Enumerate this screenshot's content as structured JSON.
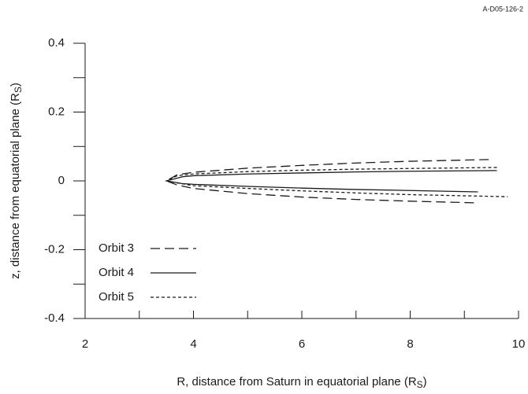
{
  "chart_data": {
    "type": "line",
    "annotation": "A-D05-126-2",
    "x_label": {
      "text": "R, distance from Saturn in equatorial plane (R",
      "subscript": "S",
      "end": ")"
    },
    "y_label": {
      "text": "z, distance from equatorial plane (R",
      "subscript": "S",
      "end": ")"
    },
    "xlim": [
      2,
      10
    ],
    "xticks": [
      2,
      4,
      6,
      8,
      10
    ],
    "xminorticks": [
      3,
      5,
      7,
      9
    ],
    "ylim": [
      -0.4,
      0.4
    ],
    "yticks": [
      -0.4,
      -0.2,
      0,
      0.2,
      0.4
    ],
    "yminorticks": [
      -0.3,
      -0.1,
      0.1,
      0.3
    ],
    "legend": "lower left",
    "series": [
      {
        "name": "Orbit 3",
        "color": "#1a1a1a",
        "linestyle": "dashed",
        "x": [
          9.45,
          8,
          7,
          6,
          5,
          4,
          3.7,
          3.5,
          3.7,
          4,
          5,
          6,
          7,
          8,
          9.25
        ],
        "values": [
          0.062,
          0.057,
          0.052,
          0.045,
          0.037,
          0.025,
          0.018,
          0,
          -0.012,
          -0.022,
          -0.037,
          -0.047,
          -0.054,
          -0.059,
          -0.064
        ]
      },
      {
        "name": "Orbit 4",
        "color": "#1a1a1a",
        "linestyle": "solid",
        "x": [
          9.6,
          8,
          7,
          6,
          5,
          4,
          3.8,
          3.5,
          3.8,
          4,
          5,
          6,
          7,
          8,
          9.25
        ],
        "values": [
          0.03,
          0.028,
          0.026,
          0.023,
          0.02,
          0.015,
          0.012,
          0,
          -0.008,
          -0.01,
          -0.016,
          -0.021,
          -0.025,
          -0.028,
          -0.032
        ]
      },
      {
        "name": "Orbit 5",
        "color": "#1a1a1a",
        "linestyle": "dotted",
        "x": [
          9.6,
          8,
          7,
          6,
          5,
          4,
          3.7,
          3.5,
          3.7,
          4,
          5,
          6,
          7,
          8,
          9.8
        ],
        "values": [
          0.039,
          0.036,
          0.034,
          0.031,
          0.027,
          0.02,
          0.015,
          0,
          -0.006,
          -0.014,
          -0.022,
          -0.029,
          -0.035,
          -0.04,
          -0.046
        ]
      }
    ]
  }
}
